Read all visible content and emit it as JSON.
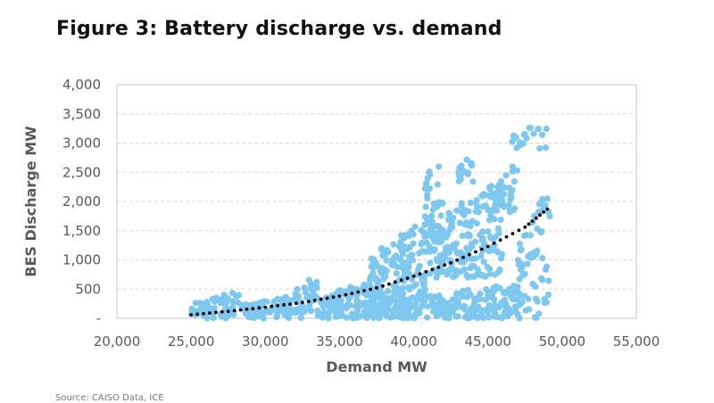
{
  "title": "Figure 3: Battery discharge vs. demand",
  "source": "Source:  CAISO Data, ICE",
  "chart_data": {
    "type": "scatter",
    "title": "Figure 3: Battery discharge vs. demand",
    "xlabel": "Demand MW",
    "ylabel": "BES Discharge MW",
    "xlim": [
      20000,
      55000
    ],
    "ylim": [
      0,
      4000
    ],
    "x_ticks": [
      20000,
      25000,
      30000,
      35000,
      40000,
      45000,
      50000,
      55000
    ],
    "x_tick_labels": [
      "20,000",
      "25,000",
      "30,000",
      "35,000",
      "40,000",
      "45,000",
      "50,000",
      "55,000"
    ],
    "y_ticks": [
      0,
      500,
      1000,
      1500,
      2000,
      2500,
      3000,
      3500,
      4000
    ],
    "y_tick_labels": [
      "-",
      "500",
      "1,000",
      "1,500",
      "2,000",
      "2,500",
      "3,000",
      "3,500",
      "4,000"
    ],
    "grid": "horizontal dashed",
    "point_color": "#7ec8f0",
    "trendline": {
      "type": "polynomial",
      "color": "#000000",
      "style": "dotted",
      "points": [
        [
          25000,
          60
        ],
        [
          27500,
          120
        ],
        [
          30000,
          190
        ],
        [
          32500,
          270
        ],
        [
          35000,
          380
        ],
        [
          37500,
          520
        ],
        [
          40000,
          720
        ],
        [
          42500,
          950
        ],
        [
          45000,
          1230
        ],
        [
          47500,
          1560
        ],
        [
          49000,
          1870
        ]
      ]
    },
    "series": [
      {
        "name": "BES discharge",
        "clusters": [
          {
            "x": [
              25000,
              28500
            ],
            "y": [
              0,
              480
            ],
            "n": 70
          },
          {
            "x": [
              28500,
              32500
            ],
            "y": [
              0,
              420
            ],
            "n": 80
          },
          {
            "x": [
              32000,
              33500
            ],
            "y": [
              100,
              780
            ],
            "n": 30
          },
          {
            "x": [
              33500,
              38000
            ],
            "y": [
              0,
              700
            ],
            "n": 150
          },
          {
            "x": [
              37000,
              41000
            ],
            "y": [
              200,
              1800
            ],
            "n": 170
          },
          {
            "x": [
              38000,
              47000
            ],
            "y": [
              0,
              600
            ],
            "n": 230
          },
          {
            "x": [
              40500,
              42000
            ],
            "y": [
              1500,
              3050
            ],
            "n": 30
          },
          {
            "x": [
              41000,
              46000
            ],
            "y": [
              700,
              2400
            ],
            "n": 200
          },
          {
            "x": [
              43000,
              44000
            ],
            "y": [
              2300,
              2850
            ],
            "n": 20
          },
          {
            "x": [
              45000,
              47000
            ],
            "y": [
              1800,
              2700
            ],
            "n": 40
          },
          {
            "x": [
              46500,
              49000
            ],
            "y": [
              2900,
              3360
            ],
            "n": 20
          },
          {
            "x": [
              47000,
              49200
            ],
            "y": [
              0,
              2300
            ],
            "n": 70
          }
        ]
      }
    ]
  }
}
